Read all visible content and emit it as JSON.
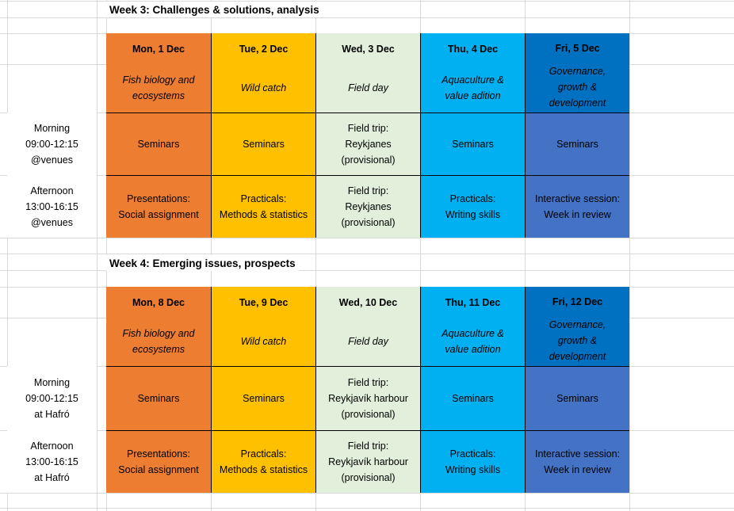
{
  "colors": {
    "monday_fill": "#ED7D31",
    "tuesday_fill": "#FFC000",
    "wednesday_fill": "#E2EFDA",
    "thursday_fill": "#00B0F0",
    "friday_header_fill": "#0070C0",
    "friday_body_fill": "#4472C4",
    "gridline": "#D9D9D9",
    "cell_border": "#000000",
    "text": "#000000"
  },
  "weeks": [
    {
      "title": "Week 3: Challenges & solutions, analysis",
      "row_labels": {
        "morning": "Morning\n09:00-12:15\n@venues",
        "afternoon": "Afternoon\n13:00-16:15\n@venues"
      },
      "days": [
        {
          "date": "Mon, 1 Dec",
          "theme": "Fish biology and\necosystems",
          "morning": "Seminars",
          "afternoon": "Presentations:\nSocial assignment"
        },
        {
          "date": "Tue, 2 Dec",
          "theme": "Wild catch",
          "morning": "Seminars",
          "afternoon": "Practicals:\nMethods & statistics"
        },
        {
          "date": "Wed, 3 Dec",
          "theme": "Field day",
          "morning": "Field trip:\nReykjanes\n(provisional)",
          "afternoon": "Field trip:\nReykjanes\n(provisional)"
        },
        {
          "date": "Thu, 4 Dec",
          "theme": "Aquaculture &\nvalue adition",
          "morning": "Seminars",
          "afternoon": "Practicals:\nWriting skills"
        },
        {
          "date": "Fri, 5 Dec",
          "theme": "Governance,\ngrowth &\ndevelopment",
          "morning": "Seminars",
          "afternoon": "Interactive session:\nWeek in review"
        }
      ]
    },
    {
      "title": "Week 4: Emerging issues, prospects",
      "row_labels": {
        "morning": "Morning\n09:00-12:15\nat Hafró",
        "afternoon": "Afternoon\n13:00-16:15\nat Hafró"
      },
      "days": [
        {
          "date": "Mon, 8 Dec",
          "theme": "Fish biology and\necosystems",
          "morning": "Seminars",
          "afternoon": "Presentations:\nSocial assignment"
        },
        {
          "date": "Tue, 9 Dec",
          "theme": "Wild catch",
          "morning": "Seminars",
          "afternoon": "Practicals:\nMethods & statistics"
        },
        {
          "date": "Wed, 10 Dec",
          "theme": "Field day",
          "morning": "Field trip:\nReykjavík harbour\n(provisional)",
          "afternoon": "Field trip:\nReykjavík harbour\n(provisional)"
        },
        {
          "date": "Thu, 11 Dec",
          "theme": "Aquaculture &\nvalue adition",
          "morning": "Seminars",
          "afternoon": "Practicals:\nWriting skills"
        },
        {
          "date": "Fri, 12 Dec",
          "theme": "Governance,\ngrowth &\ndevelopment",
          "morning": "Seminars",
          "afternoon": "Interactive session:\nWeek in review"
        }
      ]
    }
  ]
}
